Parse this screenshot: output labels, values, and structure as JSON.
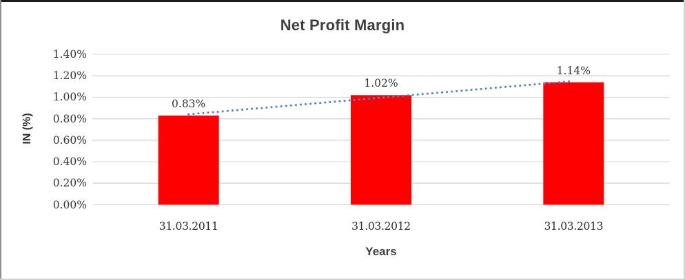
{
  "chart_data": {
    "type": "bar",
    "title": "Net Profit Margin",
    "xlabel": "Years",
    "ylabel": "IN (%)",
    "categories": [
      "31.03.2011",
      "31.03.2012",
      "31.03.2013"
    ],
    "series": [
      {
        "name": "Net Profit Margin",
        "values": [
          0.83,
          1.02,
          1.14
        ]
      }
    ],
    "data_labels": [
      "0.83%",
      "1.02%",
      "1.14%"
    ],
    "yticks": [
      "0.00%",
      "0.20%",
      "0.40%",
      "0.60%",
      "0.80%",
      "1.00%",
      "1.20%",
      "1.40%"
    ],
    "ytick_step": 0.2,
    "ylim": [
      0,
      1.4
    ],
    "grid": true,
    "legend": "none",
    "trendline": {
      "type": "linear",
      "style": "dotted"
    },
    "colors": {
      "bar": "#FF0000",
      "trendline": "#4A86C8",
      "gridline": "#D9D9D9",
      "text": "#333333",
      "title_text": "#3F3F3F"
    }
  }
}
